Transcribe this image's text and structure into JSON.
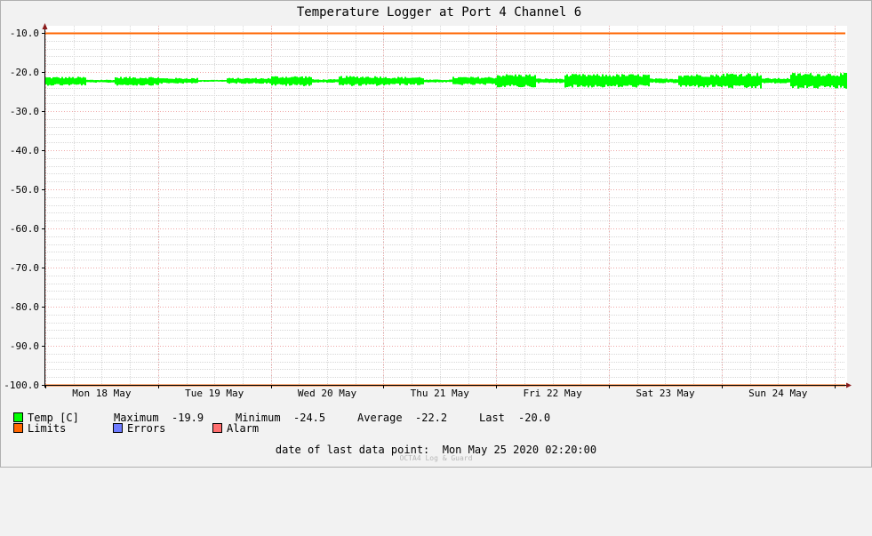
{
  "chart_data": {
    "type": "line",
    "title": "Temperature Logger at Port 4 Channel 6",
    "ylim": [
      -100,
      -10
    ],
    "yticks": [
      -10,
      -20,
      -30,
      -40,
      -50,
      -60,
      -70,
      -80,
      -90,
      -100
    ],
    "ytick_labels": [
      "-10.0",
      "-20.0",
      "-30.0",
      "-40.0",
      "-50.0",
      "-60.0",
      "-70.0",
      "-80.0",
      "-90.0",
      "-100.0"
    ],
    "x_start": "Mon May 18 2020 00:00",
    "x_end": "Mon May 25 2020 02:20",
    "xtick_labels": [
      "Mon 18 May",
      "Tue 19 May",
      "Wed 20 May",
      "Thu 21 May",
      "Fri 22 May",
      "Sat 23 May",
      "Sun 24 May"
    ],
    "series": [
      {
        "name": "Temp [C]",
        "color": "#00ff00",
        "band": [
          {
            "date": "May 18",
            "min": -23.5,
            "max": -21.2
          },
          {
            "date": "May 19",
            "min": -23.0,
            "max": -21.5
          },
          {
            "date": "May 20",
            "min": -23.6,
            "max": -21.0
          },
          {
            "date": "May 21",
            "min": -23.4,
            "max": -21.2
          },
          {
            "date": "May 22",
            "min": -24.0,
            "max": -20.5
          },
          {
            "date": "May 23",
            "min": -24.0,
            "max": -20.5
          },
          {
            "date": "May 24",
            "min": -24.3,
            "max": -20.2
          }
        ]
      },
      {
        "name": "Limits",
        "color": "#ff6600",
        "values": [
          -10.0,
          -100.0
        ]
      }
    ],
    "grid": true
  },
  "legend": {
    "temp_label": "Temp [C]",
    "temp_color": "#00ff00",
    "maximum_label": "Maximum",
    "maximum_value": "-19.9",
    "minimum_label": "Minimum",
    "minimum_value": "-24.5",
    "average_label": "Average",
    "average_value": "-22.2",
    "last_label": "Last",
    "last_value": "-20.0",
    "limits_label": "Limits",
    "limits_color": "#ff6600",
    "errors_label": "Errors",
    "errors_color": "#6e7bff",
    "alarm_label": "Alarm",
    "alarm_color": "#ff6e6e"
  },
  "footer": {
    "last_point_text": "date of last data point:  Mon May 25 2020 02:20:00",
    "watermark": "OCTA4 Log & Guard"
  }
}
